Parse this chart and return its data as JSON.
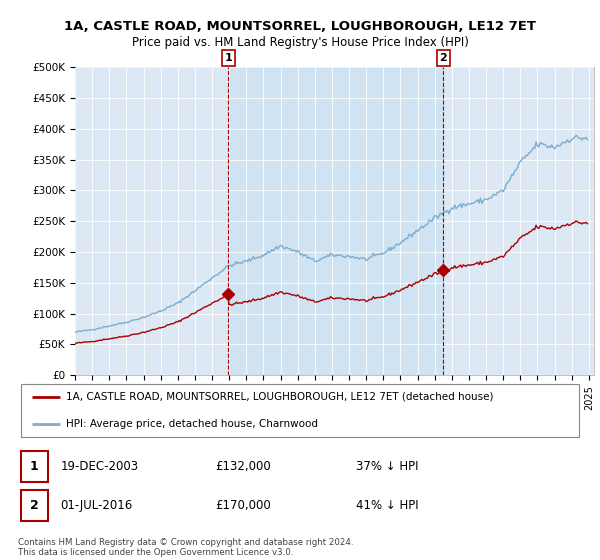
{
  "title": "1A, CASTLE ROAD, MOUNTSORREL, LOUGHBOROUGH, LE12 7ET",
  "subtitle": "Price paid vs. HM Land Registry's House Price Index (HPI)",
  "legend_line1": "1A, CASTLE ROAD, MOUNTSORREL, LOUGHBOROUGH, LE12 7ET (detached house)",
  "legend_line2": "HPI: Average price, detached house, Charnwood",
  "footnote": "Contains HM Land Registry data © Crown copyright and database right 2024.\nThis data is licensed under the Open Government Licence v3.0.",
  "annotation1_date": "19-DEC-2003",
  "annotation1_price": "£132,000",
  "annotation1_hpi": "37% ↓ HPI",
  "annotation2_date": "01-JUL-2016",
  "annotation2_price": "£170,000",
  "annotation2_hpi": "41% ↓ HPI",
  "sale1_x": 2003.96,
  "sale1_price": 132000,
  "sale2_x": 2016.5,
  "sale2_price": 170000,
  "ylim": [
    0,
    500000
  ],
  "xlim_left": 1995.0,
  "xlim_right": 2025.3,
  "yticks": [
    0,
    50000,
    100000,
    150000,
    200000,
    250000,
    300000,
    350000,
    400000,
    450000,
    500000
  ],
  "ytick_labels": [
    "£0",
    "£50K",
    "£100K",
    "£150K",
    "£200K",
    "£250K",
    "£300K",
    "£350K",
    "£400K",
    "£450K",
    "£500K"
  ],
  "red_color": "#aa0000",
  "blue_color": "#7aadcf",
  "bg_color": "#dce9f5",
  "shade_color": "#c8dff0",
  "grid_color": "#ffffff",
  "title_fontsize": 9.5,
  "subtitle_fontsize": 8.5
}
